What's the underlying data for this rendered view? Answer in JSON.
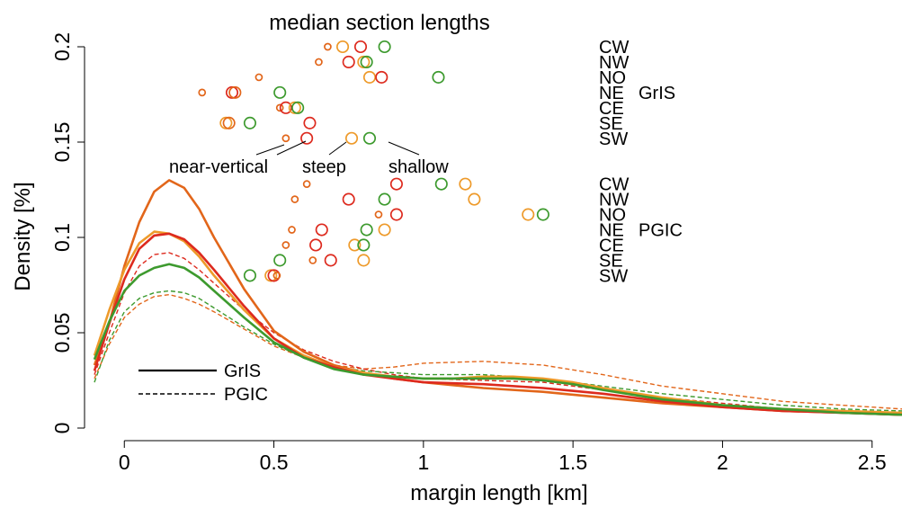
{
  "chart_data": {
    "type": "line",
    "title": "median section lengths",
    "xlabel": "margin length [km]",
    "ylabel": "Density [%]",
    "xlim": [
      -0.1,
      2.6
    ],
    "ylim": [
      0,
      0.2
    ],
    "xticks": [
      0,
      0.5,
      1,
      1.5,
      2,
      2.5
    ],
    "xtick_labels": [
      "0",
      "0.5",
      "1",
      "1.5",
      "2",
      "2.5"
    ],
    "yticks": [
      0,
      0.05,
      0.1,
      0.15,
      0.2
    ],
    "ytick_labels": [
      "0",
      "0.05",
      "0.1",
      "0.15",
      "0.2"
    ],
    "grid": false,
    "colors": {
      "CW": "#e2661a",
      "NW": "#ee9a2a",
      "NO": "#dd2a1e",
      "NE": "#3d9a2e"
    },
    "legend": {
      "placement": "bottom-left",
      "entries": [
        {
          "label": "GrIS",
          "style": "solid"
        },
        {
          "label": "PGIC",
          "style": "dashed"
        }
      ]
    },
    "series": [
      {
        "style": "solid",
        "color": "#e2661a",
        "x": [
          -0.1,
          -0.05,
          0.0,
          0.05,
          0.1,
          0.15,
          0.2,
          0.25,
          0.3,
          0.4,
          0.5,
          0.6,
          0.7,
          0.8,
          0.9,
          1.0,
          1.2,
          1.4,
          1.6,
          1.8,
          2.0,
          2.2,
          2.4,
          2.6
        ],
        "y": [
          0.033,
          0.055,
          0.085,
          0.108,
          0.124,
          0.13,
          0.126,
          0.115,
          0.1,
          0.073,
          0.051,
          0.04,
          0.033,
          0.029,
          0.026,
          0.024,
          0.021,
          0.019,
          0.016,
          0.013,
          0.011,
          0.009,
          0.008,
          0.007
        ]
      },
      {
        "style": "solid",
        "color": "#ee9a2a",
        "x": [
          -0.1,
          -0.05,
          0.0,
          0.05,
          0.1,
          0.15,
          0.2,
          0.25,
          0.3,
          0.4,
          0.5,
          0.6,
          0.7,
          0.8,
          0.9,
          1.0,
          1.1,
          1.2,
          1.3,
          1.4,
          1.5,
          1.6,
          1.8,
          2.0,
          2.2,
          2.4,
          2.6
        ],
        "y": [
          0.038,
          0.062,
          0.083,
          0.097,
          0.103,
          0.102,
          0.098,
          0.09,
          0.08,
          0.062,
          0.047,
          0.038,
          0.032,
          0.029,
          0.027,
          0.026,
          0.026,
          0.027,
          0.027,
          0.026,
          0.024,
          0.021,
          0.016,
          0.012,
          0.01,
          0.009,
          0.008
        ]
      },
      {
        "style": "solid",
        "color": "#dd2a1e",
        "x": [
          -0.1,
          -0.05,
          0.0,
          0.05,
          0.1,
          0.15,
          0.2,
          0.25,
          0.3,
          0.4,
          0.5,
          0.6,
          0.7,
          0.8,
          0.9,
          1.0,
          1.2,
          1.4,
          1.6,
          1.8,
          2.0,
          2.2,
          2.4,
          2.6
        ],
        "y": [
          0.03,
          0.055,
          0.078,
          0.094,
          0.101,
          0.102,
          0.099,
          0.092,
          0.083,
          0.064,
          0.047,
          0.037,
          0.032,
          0.028,
          0.026,
          0.024,
          0.023,
          0.021,
          0.018,
          0.014,
          0.011,
          0.009,
          0.008,
          0.007
        ]
      },
      {
        "style": "solid",
        "color": "#3d9a2e",
        "x": [
          -0.1,
          -0.05,
          0.0,
          0.05,
          0.1,
          0.15,
          0.2,
          0.25,
          0.3,
          0.4,
          0.5,
          0.6,
          0.7,
          0.8,
          0.9,
          1.0,
          1.1,
          1.2,
          1.3,
          1.4,
          1.5,
          1.6,
          1.8,
          2.0,
          2.2,
          2.4,
          2.6
        ],
        "y": [
          0.036,
          0.056,
          0.072,
          0.08,
          0.084,
          0.086,
          0.084,
          0.079,
          0.072,
          0.058,
          0.045,
          0.037,
          0.031,
          0.028,
          0.027,
          0.026,
          0.026,
          0.026,
          0.026,
          0.025,
          0.023,
          0.02,
          0.015,
          0.012,
          0.01,
          0.008,
          0.007
        ]
      },
      {
        "style": "dashed",
        "color": "#e2661a",
        "x": [
          -0.1,
          -0.05,
          0.0,
          0.05,
          0.1,
          0.15,
          0.2,
          0.25,
          0.3,
          0.4,
          0.5,
          0.6,
          0.7,
          0.8,
          0.9,
          1.0,
          1.2,
          1.4,
          1.6,
          1.8,
          2.0,
          2.2,
          2.4,
          2.6
        ],
        "y": [
          0.026,
          0.044,
          0.058,
          0.065,
          0.069,
          0.07,
          0.068,
          0.065,
          0.061,
          0.052,
          0.043,
          0.037,
          0.033,
          0.031,
          0.032,
          0.034,
          0.035,
          0.033,
          0.028,
          0.022,
          0.018,
          0.014,
          0.012,
          0.01
        ]
      },
      {
        "style": "dashed",
        "color": "#dd2a1e",
        "x": [
          -0.1,
          -0.05,
          0.0,
          0.05,
          0.1,
          0.15,
          0.2,
          0.25,
          0.3,
          0.4,
          0.5,
          0.6,
          0.7,
          0.8,
          0.9,
          1.0,
          1.2,
          1.4,
          1.6,
          1.8,
          2.0,
          2.2,
          2.4,
          2.6
        ],
        "y": [
          0.028,
          0.05,
          0.071,
          0.085,
          0.091,
          0.092,
          0.089,
          0.083,
          0.076,
          0.062,
          0.05,
          0.041,
          0.035,
          0.031,
          0.028,
          0.026,
          0.025,
          0.024,
          0.02,
          0.016,
          0.013,
          0.01,
          0.009,
          0.008
        ]
      },
      {
        "style": "dashed",
        "color": "#3d9a2e",
        "x": [
          -0.1,
          -0.05,
          0.0,
          0.05,
          0.1,
          0.15,
          0.2,
          0.25,
          0.3,
          0.4,
          0.5,
          0.6,
          0.7,
          0.8,
          0.9,
          1.0,
          1.2,
          1.4,
          1.6,
          1.8,
          2.0,
          2.2,
          2.4,
          2.6
        ],
        "y": [
          0.024,
          0.046,
          0.061,
          0.068,
          0.071,
          0.072,
          0.071,
          0.068,
          0.063,
          0.053,
          0.044,
          0.037,
          0.032,
          0.03,
          0.029,
          0.028,
          0.028,
          0.026,
          0.022,
          0.018,
          0.015,
          0.012,
          0.01,
          0.009
        ]
      }
    ],
    "median_markers": {
      "groups": [
        {
          "label": "GrIS",
          "regions": [
            "CW",
            "NW",
            "NO",
            "NE",
            "CE",
            "SE",
            "SW"
          ],
          "y": [
            0.2,
            0.192,
            0.184,
            0.176,
            0.168,
            0.16,
            0.152
          ]
        },
        {
          "label": "PGIC",
          "regions": [
            "CW",
            "NW",
            "NO",
            "NE",
            "CE",
            "SE",
            "SW"
          ],
          "y": [
            0.128,
            0.12,
            0.112,
            0.104,
            0.096,
            0.088,
            0.08
          ]
        }
      ],
      "size_classes": [
        {
          "label": "near-vertical",
          "size": "small"
        },
        {
          "label": "steep",
          "size": "medium"
        },
        {
          "label": "shallow",
          "size": "large"
        }
      ],
      "points": [
        {
          "group": "GrIS",
          "region": "CW",
          "points": [
            {
              "x": 0.68,
              "size": "small",
              "color": "#e2661a"
            },
            {
              "x": 0.73,
              "size": "large",
              "color": "#ee9a2a"
            },
            {
              "x": 0.79,
              "size": "large",
              "color": "#dd2a1e"
            },
            {
              "x": 0.87,
              "size": "large",
              "color": "#3d9a2e"
            }
          ]
        },
        {
          "group": "GrIS",
          "region": "NW",
          "points": [
            {
              "x": 0.65,
              "size": "small",
              "color": "#e2661a"
            },
            {
              "x": 0.75,
              "size": "large",
              "color": "#dd2a1e"
            },
            {
              "x": 0.8,
              "size": "large",
              "color": "#ee9a2a"
            },
            {
              "x": 0.81,
              "size": "large",
              "color": "#3d9a2e"
            }
          ]
        },
        {
          "group": "GrIS",
          "region": "NO",
          "points": [
            {
              "x": 0.45,
              "size": "small",
              "color": "#e2661a"
            },
            {
              "x": 0.82,
              "size": "large",
              "color": "#ee9a2a"
            },
            {
              "x": 0.86,
              "size": "large",
              "color": "#dd2a1e"
            },
            {
              "x": 1.05,
              "size": "large",
              "color": "#3d9a2e"
            }
          ]
        },
        {
          "group": "GrIS",
          "region": "NE",
          "points": [
            {
              "x": 0.26,
              "size": "small",
              "color": "#e2661a"
            },
            {
              "x": 0.36,
              "size": "large",
              "color": "#dd2a1e"
            },
            {
              "x": 0.37,
              "size": "large",
              "color": "#e2661a"
            },
            {
              "x": 0.52,
              "size": "large",
              "color": "#3d9a2e"
            }
          ]
        },
        {
          "group": "GrIS",
          "region": "CE",
          "points": [
            {
              "x": 0.52,
              "size": "small",
              "color": "#e2661a"
            },
            {
              "x": 0.54,
              "size": "large",
              "color": "#dd2a1e"
            },
            {
              "x": 0.57,
              "size": "large",
              "color": "#ee9a2a"
            },
            {
              "x": 0.58,
              "size": "large",
              "color": "#3d9a2e"
            }
          ]
        },
        {
          "group": "GrIS",
          "region": "SE",
          "points": [
            {
              "x": 0.34,
              "size": "large",
              "color": "#ee9a2a"
            },
            {
              "x": 0.35,
              "size": "large",
              "color": "#e2661a"
            },
            {
              "x": 0.42,
              "size": "large",
              "color": "#3d9a2e"
            },
            {
              "x": 0.62,
              "size": "large",
              "color": "#dd2a1e"
            }
          ]
        },
        {
          "group": "GrIS",
          "region": "SW",
          "points": [
            {
              "x": 0.54,
              "size": "small",
              "color": "#e2661a"
            },
            {
              "x": 0.61,
              "size": "large",
              "color": "#dd2a1e"
            },
            {
              "x": 0.76,
              "size": "large",
              "color": "#ee9a2a"
            },
            {
              "x": 0.82,
              "size": "large",
              "color": "#3d9a2e"
            }
          ]
        },
        {
          "group": "PGIC",
          "region": "CW",
          "points": [
            {
              "x": 0.61,
              "size": "small",
              "color": "#e2661a"
            },
            {
              "x": 0.91,
              "size": "large",
              "color": "#dd2a1e"
            },
            {
              "x": 1.06,
              "size": "large",
              "color": "#3d9a2e"
            },
            {
              "x": 1.14,
              "size": "large",
              "color": "#ee9a2a"
            }
          ]
        },
        {
          "group": "PGIC",
          "region": "NW",
          "points": [
            {
              "x": 0.57,
              "size": "small",
              "color": "#e2661a"
            },
            {
              "x": 0.75,
              "size": "large",
              "color": "#dd2a1e"
            },
            {
              "x": 0.87,
              "size": "large",
              "color": "#3d9a2e"
            },
            {
              "x": 1.17,
              "size": "large",
              "color": "#ee9a2a"
            }
          ]
        },
        {
          "group": "PGIC",
          "region": "NO",
          "points": [
            {
              "x": 0.85,
              "size": "small",
              "color": "#e2661a"
            },
            {
              "x": 0.91,
              "size": "large",
              "color": "#dd2a1e"
            },
            {
              "x": 1.35,
              "size": "large",
              "color": "#ee9a2a"
            },
            {
              "x": 1.4,
              "size": "large",
              "color": "#3d9a2e"
            }
          ]
        },
        {
          "group": "PGIC",
          "region": "NE",
          "points": [
            {
              "x": 0.56,
              "size": "small",
              "color": "#e2661a"
            },
            {
              "x": 0.66,
              "size": "large",
              "color": "#dd2a1e"
            },
            {
              "x": 0.81,
              "size": "large",
              "color": "#3d9a2e"
            },
            {
              "x": 0.87,
              "size": "large",
              "color": "#ee9a2a"
            }
          ]
        },
        {
          "group": "PGIC",
          "region": "CE",
          "points": [
            {
              "x": 0.54,
              "size": "small",
              "color": "#e2661a"
            },
            {
              "x": 0.64,
              "size": "large",
              "color": "#dd2a1e"
            },
            {
              "x": 0.77,
              "size": "large",
              "color": "#ee9a2a"
            },
            {
              "x": 0.8,
              "size": "large",
              "color": "#3d9a2e"
            }
          ]
        },
        {
          "group": "PGIC",
          "region": "SE",
          "points": [
            {
              "x": 0.52,
              "size": "large",
              "color": "#3d9a2e"
            },
            {
              "x": 0.63,
              "size": "small",
              "color": "#e2661a"
            },
            {
              "x": 0.69,
              "size": "large",
              "color": "#dd2a1e"
            },
            {
              "x": 0.8,
              "size": "large",
              "color": "#ee9a2a"
            }
          ]
        },
        {
          "group": "PGIC",
          "region": "SW",
          "points": [
            {
              "x": 0.42,
              "size": "large",
              "color": "#3d9a2e"
            },
            {
              "x": 0.49,
              "size": "large",
              "color": "#ee9a2a"
            },
            {
              "x": 0.5,
              "size": "large",
              "color": "#dd2a1e"
            },
            {
              "x": 0.51,
              "size": "small",
              "color": "#e2661a"
            }
          ]
        }
      ]
    }
  }
}
